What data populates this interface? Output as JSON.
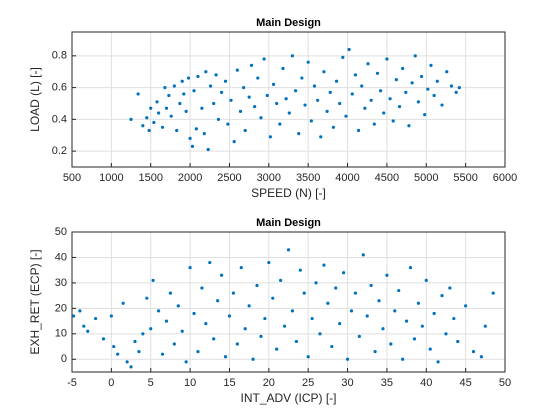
{
  "chart_data": [
    {
      "type": "scatter",
      "title": "Main Design",
      "x_label": "SPEED (N) [-]",
      "y_label": "LOAD (L) [-]",
      "color": "#0072bd",
      "x": [
        1250,
        1340,
        1400,
        1450,
        1480,
        1500,
        1540,
        1580,
        1600,
        1650,
        1680,
        1700,
        1730,
        1760,
        1800,
        1830,
        1870,
        1900,
        1920,
        1950,
        1980,
        2000,
        2030,
        2050,
        2080,
        2100,
        2150,
        2180,
        2200,
        2230,
        2260,
        2300,
        2330,
        2360,
        2400,
        2450,
        2480,
        2520,
        2560,
        2600,
        2640,
        2680,
        2700,
        2750,
        2780,
        2820,
        2860,
        2900,
        2940,
        2980,
        3020,
        3060,
        3100,
        3140,
        3180,
        3220,
        3260,
        3300,
        3340,
        3380,
        3420,
        3460,
        3500,
        3540,
        3580,
        3620,
        3660,
        3700,
        3740,
        3780,
        3820,
        3860,
        3900,
        3940,
        3980,
        4020,
        4060,
        4100,
        4140,
        4180,
        4220,
        4260,
        4300,
        4340,
        4380,
        4420,
        4460,
        4500,
        4540,
        4580,
        4620,
        4660,
        4700,
        4740,
        4780,
        4820,
        4860,
        4900,
        4940,
        4980,
        5020,
        5060,
        5100,
        5140,
        5200,
        5260,
        5320,
        5380,
        5420
      ],
      "values": [
        0.4,
        0.56,
        0.36,
        0.41,
        0.33,
        0.47,
        0.38,
        0.51,
        0.44,
        0.35,
        0.6,
        0.47,
        0.55,
        0.42,
        0.61,
        0.33,
        0.5,
        0.64,
        0.56,
        0.45,
        0.66,
        0.28,
        0.23,
        0.58,
        0.34,
        0.67,
        0.47,
        0.31,
        0.7,
        0.21,
        0.61,
        0.5,
        0.68,
        0.4,
        0.57,
        0.64,
        0.37,
        0.52,
        0.26,
        0.71,
        0.45,
        0.6,
        0.33,
        0.54,
        0.74,
        0.48,
        0.66,
        0.41,
        0.78,
        0.55,
        0.29,
        0.62,
        0.5,
        0.37,
        0.72,
        0.53,
        0.44,
        0.8,
        0.58,
        0.31,
        0.66,
        0.49,
        0.76,
        0.39,
        0.61,
        0.52,
        0.29,
        0.7,
        0.45,
        0.57,
        0.35,
        0.64,
        0.5,
        0.79,
        0.42,
        0.84,
        0.56,
        0.68,
        0.33,
        0.61,
        0.47,
        0.75,
        0.52,
        0.37,
        0.69,
        0.58,
        0.44,
        0.78,
        0.53,
        0.39,
        0.65,
        0.48,
        0.72,
        0.57,
        0.36,
        0.63,
        0.8,
        0.51,
        0.67,
        0.43,
        0.59,
        0.74,
        0.55,
        0.64,
        0.49,
        0.7,
        0.61,
        0.57,
        0.6
      ],
      "xlim": [
        500,
        6000
      ],
      "xticks": [
        500,
        1000,
        1500,
        2000,
        2500,
        3000,
        3500,
        4000,
        4500,
        5000,
        5500,
        6000
      ],
      "ylim": [
        0.1,
        0.95
      ],
      "yticks": [
        0.2,
        0.4,
        0.6,
        0.8
      ],
      "grid": true
    },
    {
      "type": "scatter",
      "title": "Main Design",
      "x_label": "INT_ADV (ICP) [-]",
      "y_label": "EXH_RET (ECP) [-]",
      "color": "#0072bd",
      "x": [
        -4.8,
        -4,
        -3.5,
        -3,
        -2,
        -1,
        0,
        0.3,
        0.8,
        1.5,
        2,
        2.5,
        3,
        3.5,
        4,
        4.5,
        5,
        5.3,
        6,
        6.5,
        7,
        7.5,
        8,
        8.5,
        9,
        9.5,
        10,
        10.5,
        11,
        11.5,
        12,
        12.5,
        13,
        13.5,
        14,
        14.5,
        15,
        15.5,
        16,
        16.5,
        17,
        17.5,
        18,
        18.5,
        19,
        19.5,
        20,
        20.5,
        21,
        21.5,
        22,
        22.5,
        23,
        23.5,
        24,
        24.5,
        25,
        25.5,
        26,
        26.5,
        27,
        27.5,
        28,
        28.5,
        29,
        29.5,
        30,
        30.5,
        31,
        31.5,
        32,
        32.5,
        33,
        33.5,
        34,
        34.5,
        35,
        35.5,
        36,
        36.5,
        37,
        37.5,
        38,
        38.5,
        39,
        39.5,
        40,
        40.5,
        41,
        41.5,
        42,
        42.5,
        43,
        43.5,
        44,
        45,
        46,
        47,
        47.5,
        48.5
      ],
      "values": [
        17,
        19,
        13,
        11,
        16,
        8,
        17,
        5,
        2,
        22,
        -1,
        -3,
        7,
        3,
        10,
        24,
        12,
        31,
        19,
        2,
        15,
        26,
        6,
        21,
        11,
        -1,
        36,
        18,
        3,
        28,
        14,
        38,
        8,
        23,
        33,
        1,
        17,
        26,
        6,
        36,
        12,
        21,
        0,
        29,
        9,
        16,
        38,
        24,
        4,
        31,
        13,
        43,
        19,
        7,
        35,
        26,
        1,
        16,
        30,
        10,
        37,
        22,
        5,
        28,
        14,
        34,
        0,
        19,
        26,
        9,
        41,
        17,
        29,
        3,
        23,
        12,
        33,
        6,
        19,
        27,
        0,
        15,
        36,
        8,
        22,
        13,
        31,
        4,
        18,
        -1,
        25,
        10,
        28,
        16,
        7,
        21,
        3,
        1,
        13,
        26
      ],
      "xlim": [
        -5,
        50
      ],
      "xticks": [
        -5,
        0,
        5,
        10,
        15,
        20,
        25,
        30,
        35,
        40,
        45,
        50
      ],
      "ylim": [
        -5,
        50
      ],
      "yticks": [
        0,
        10,
        20,
        30,
        40,
        50
      ],
      "grid": true
    }
  ]
}
